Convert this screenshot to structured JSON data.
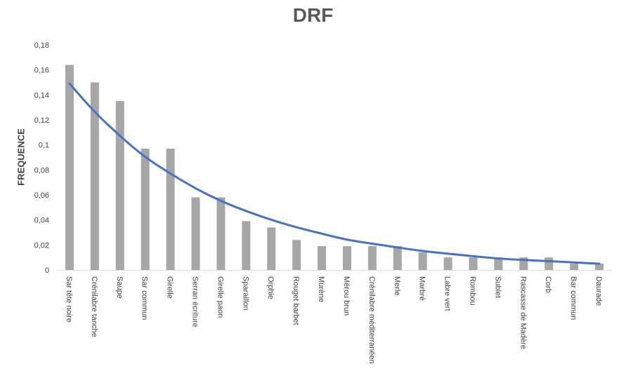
{
  "chart_data": {
    "type": "bar",
    "title": "DRF",
    "xlabel": "",
    "ylabel": "FREQUENCE",
    "ylim": [
      0,
      0.18
    ],
    "yticks": [
      "0",
      "0,02",
      "0,04",
      "0,06",
      "0,08",
      "0,1",
      "0,12",
      "0,14",
      "0,16",
      "0,18"
    ],
    "categories": [
      "Sar tête noire",
      "Crénilabre tanche",
      "Saupe",
      "Sar commun",
      "Girelle",
      "Serran écriture",
      "Girelle paon",
      "Sparaillon",
      "Orphie",
      "Rouget barbet",
      "Murène",
      "Mérou brun",
      "Crénilabre méditerranéen",
      "Merle",
      "Marbré",
      "Labre vert",
      "Rombou",
      "Sublet",
      "Rascasse de Madère",
      "Corb",
      "Bar commun",
      "Daurade"
    ],
    "series": [
      {
        "type": "bar",
        "color": "#a6a6a6",
        "values": [
          0.164,
          0.15,
          0.135,
          0.097,
          0.097,
          0.058,
          0.058,
          0.039,
          0.034,
          0.024,
          0.019,
          0.019,
          0.019,
          0.019,
          0.014,
          0.01,
          0.01,
          0.01,
          0.01,
          0.01,
          0.005,
          0.005
        ]
      },
      {
        "type": "trendline",
        "color": "#4472c4",
        "values": [
          0.149,
          0.126,
          0.107,
          0.09,
          0.077,
          0.065,
          0.055,
          0.047,
          0.04,
          0.034,
          0.029,
          0.024,
          0.021,
          0.018,
          0.015,
          0.013,
          0.011,
          0.009,
          0.008,
          0.007,
          0.006,
          0.005
        ]
      }
    ],
    "grid": false,
    "legend": "none"
  }
}
